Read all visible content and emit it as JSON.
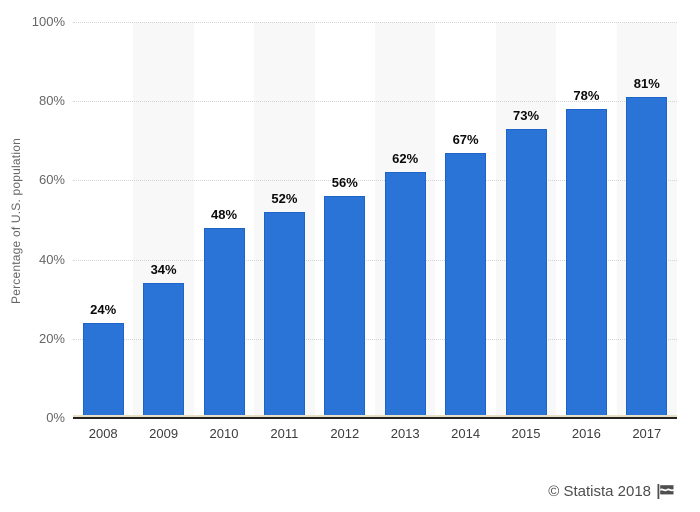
{
  "chart_data": {
    "type": "bar",
    "title": "",
    "categories": [
      "2008",
      "2009",
      "2010",
      "2011",
      "2012",
      "2013",
      "2014",
      "2015",
      "2016",
      "2017"
    ],
    "values": [
      24,
      34,
      48,
      52,
      56,
      62,
      67,
      73,
      78,
      81
    ],
    "value_suffix": "%",
    "xlabel": "",
    "ylabel": "Percentage of U.S. population",
    "ylim": [
      0,
      100
    ],
    "yticks": [
      0,
      20,
      40,
      60,
      80,
      100
    ],
    "ytick_suffix": "%",
    "grid": "horizontal dotted lines at 20% steps",
    "legend": "none",
    "plot_bands": "alternating light-gray vertical bands behind odd categories",
    "colors": {
      "bar": "#2a74d8",
      "bar_border": "#1d63c8",
      "band": "#f8f8f8",
      "gridline": "#d4d4d4",
      "axis_line": "#242424",
      "axis_accent": "#e9dfc4",
      "value_label": "#0a0a0a",
      "x_tick_label": "#3d3d3d",
      "y_tick_label": "#666666",
      "axis_title": "#666666",
      "background": "#ffffff",
      "footer_text": "#4e4e4e"
    }
  },
  "footer": {
    "text": "© Statista 2018",
    "icon": "statista-flag-icon"
  }
}
